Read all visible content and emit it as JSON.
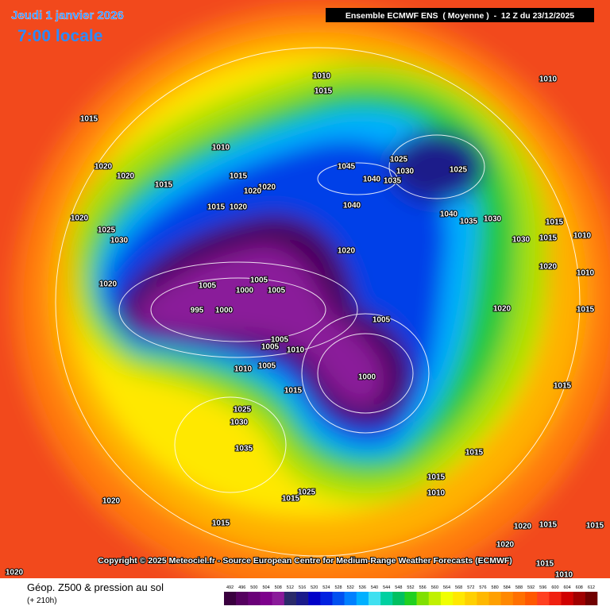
{
  "header": {
    "date": "Jeudi 1 janvier 2026",
    "time": "7:00 locale",
    "title": "Ensemble ECMWF ENS  ( Moyenne )  -  12 Z du 23/12/2025"
  },
  "copyright": "Copyright © 2025 Meteociel.fr - Source European Centre for Medium-Range Weather Forecasts (ECMWF)",
  "footer": {
    "field": "Géop. Z500 & pression au sol",
    "lead": "(+ 210h)"
  },
  "legend": {
    "values": [
      492,
      496,
      500,
      504,
      508,
      512,
      516,
      520,
      524,
      528,
      532,
      536,
      540,
      544,
      548,
      552,
      556,
      560,
      564,
      568,
      572,
      576,
      580,
      584,
      588,
      592,
      596,
      600,
      604,
      608,
      612
    ],
    "colors": [
      "#3a003f",
      "#55005f",
      "#6a0078",
      "#7d008c",
      "#8a1a9a",
      "#2a2a6a",
      "#1a1a8a",
      "#0000c8",
      "#0020e0",
      "#0050f0",
      "#0080ff",
      "#00b0ff",
      "#40e0f0",
      "#00d0a0",
      "#00c060",
      "#20d020",
      "#80e000",
      "#c0f000",
      "#f0ff00",
      "#ffe800",
      "#ffd000",
      "#ffb800",
      "#ffa000",
      "#ff8800",
      "#ff7000",
      "#ff5800",
      "#ff4020",
      "#f02010",
      "#d00000",
      "#a00000",
      "#700000"
    ]
  },
  "isobars": [
    1010,
    1015,
    1010,
    1015,
    1010,
    1025,
    1030,
    1025,
    1045,
    1040,
    1035,
    1020,
    1020,
    1015,
    1015,
    1020,
    1020,
    1015,
    1020,
    1040,
    1040,
    1035,
    1030,
    1015,
    1020,
    1025,
    1030,
    1015,
    1010,
    1020,
    1030,
    1020,
    1010,
    1020,
    1005,
    1005,
    1000,
    1005,
    995,
    1000,
    1005,
    1020,
    1015,
    1005,
    1005,
    1010,
    1010,
    1005,
    1000,
    1015,
    1015,
    1025,
    1030,
    1035,
    1015,
    1015,
    1010,
    1025,
    1015,
    1020,
    1015,
    1020,
    1015,
    1015,
    1020,
    1015,
    1010,
    1020
  ]
}
